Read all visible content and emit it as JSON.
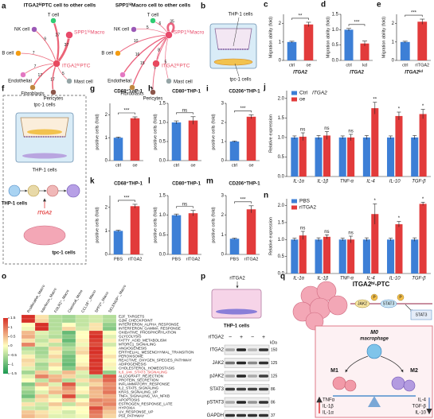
{
  "chart_data": [
    {
      "type": "bar",
      "panel": "c",
      "ylabel": "Migration ability (fold)",
      "xlabel": "ITGA2",
      "categories": [
        "ctrl",
        "oe"
      ],
      "values": [
        1,
        1.95
      ],
      "errors": [
        0.04,
        0.12
      ],
      "colors": [
        "#3d7fd6",
        "#e23b3b"
      ],
      "ylim": [
        0,
        2.5
      ],
      "yticks": [
        0,
        1,
        2
      ],
      "significance": "**"
    },
    {
      "type": "bar",
      "panel": "d",
      "ylabel": "Migration ability (fold)",
      "xlabel": "ITGA2",
      "categories": [
        "ctrl",
        "kd"
      ],
      "values": [
        1,
        0.55
      ],
      "errors": [
        0.04,
        0.08
      ],
      "colors": [
        "#3d7fd6",
        "#e23b3b"
      ],
      "ylim": [
        0,
        1.5
      ],
      "yticks": [
        {
          "value": 0,
          "label": "0.0"
        },
        {
          "value": 0.5,
          "label": "0.5"
        },
        {
          "value": 1,
          "label": "1.0"
        },
        {
          "value": 1.5,
          "label": "1.5"
        }
      ],
      "significance": "***"
    },
    {
      "type": "bar",
      "panel": "e",
      "ylabel": "Migration ability (fold)",
      "xlabel": "ITGA2ᵏᵈ",
      "categories": [
        "ctrl",
        "rITGA2"
      ],
      "values": [
        1,
        2.1
      ],
      "errors": [
        0.04,
        0.14
      ],
      "colors": [
        "#3d7fd6",
        "#e23b3b"
      ],
      "ylim": [
        0,
        2.5
      ],
      "yticks": [
        0,
        1,
        2
      ],
      "significance": "***"
    },
    {
      "type": "bar",
      "panel": "g",
      "title": "CD68⁺THP-1",
      "ylabel": "positive cells (fold)",
      "categories": [
        "ctrl",
        "oe"
      ],
      "values": [
        1,
        1.85
      ],
      "errors": [
        0.03,
        0.06
      ],
      "colors": [
        "#3d7fd6",
        "#e23b3b"
      ],
      "ylim": [
        0,
        2.5
      ],
      "yticks": [
        0,
        1,
        2
      ],
      "significance": "***"
    },
    {
      "type": "bar",
      "panel": "h",
      "title": "CD80⁺THP-1",
      "ylabel": "positive cells (fold)",
      "categories": [
        "ctrl",
        "oe"
      ],
      "values": [
        1,
        1.05
      ],
      "errors": [
        0.04,
        0.1
      ],
      "colors": [
        "#3d7fd6",
        "#e23b3b"
      ],
      "ylim": [
        0,
        1.5
      ],
      "yticks": [
        {
          "value": 0,
          "label": "0.0"
        },
        {
          "value": 0.5,
          "label": "0.5"
        },
        {
          "value": 1,
          "label": "1.0"
        },
        {
          "value": 1.5,
          "label": "1.5"
        }
      ],
      "significance": "ns"
    },
    {
      "type": "bar",
      "panel": "i",
      "title": "CD206⁺THP-1",
      "ylabel": "positive cells (fold)",
      "categories": [
        "ctrl",
        "oe"
      ],
      "values": [
        1,
        2.3
      ],
      "errors": [
        0.03,
        0.1
      ],
      "colors": [
        "#3d7fd6",
        "#e23b3b"
      ],
      "ylim": [
        0,
        3
      ],
      "yticks": [
        0,
        1,
        2,
        3
      ],
      "significance": "***"
    },
    {
      "type": "bar",
      "panel": "k",
      "title": "CD68⁺THP-1",
      "ylabel": "positive cells (fold)",
      "categories": [
        "PBS",
        "rITGA2"
      ],
      "values": [
        1,
        2.05
      ],
      "errors": [
        0.03,
        0.08
      ],
      "colors": [
        "#3d7fd6",
        "#e23b3b"
      ],
      "ylim": [
        0,
        2.5
      ],
      "yticks": [
        0,
        1,
        2
      ],
      "significance": "***"
    },
    {
      "type": "bar",
      "panel": "l",
      "title": "CD80⁺THP-1",
      "ylabel": "positive cells (fold)",
      "categories": [
        "PBS",
        "rITGA2"
      ],
      "values": [
        1,
        1.05
      ],
      "errors": [
        0.03,
        0.07
      ],
      "colors": [
        "#3d7fd6",
        "#e23b3b"
      ],
      "ylim": [
        0,
        1.5
      ],
      "yticks": [
        {
          "value": 0,
          "label": "0.0"
        },
        {
          "value": 0.5,
          "label": "0.5"
        },
        {
          "value": 1,
          "label": "1.0"
        },
        {
          "value": 1.5,
          "label": "1.5"
        }
      ],
      "significance": "ns"
    },
    {
      "type": "bar",
      "panel": "m",
      "title": "CD206⁺THP-1",
      "ylabel": "positive cells (fold)",
      "categories": [
        "PBS",
        "rITGA2"
      ],
      "values": [
        0.8,
        2.3
      ],
      "errors": [
        0.03,
        0.18
      ],
      "colors": [
        "#3d7fd6",
        "#e23b3b"
      ],
      "ylim": [
        0,
        3
      ],
      "yticks": [
        0,
        1,
        2,
        3
      ],
      "significance": "***"
    },
    {
      "type": "grouped_bar",
      "panel": "j",
      "ylabel": "Relative expression",
      "legend_title": "ITGA2",
      "categories": [
        "IL-1α",
        "IL-1β",
        "TNF-α",
        "IL-4",
        "IL-10",
        "TGF-β"
      ],
      "series": [
        {
          "name": "Ctrl",
          "color": "#3d7fd6",
          "values": [
            1,
            1,
            1,
            1,
            1,
            1
          ],
          "errors": [
            0.04,
            0.05,
            0.04,
            0.05,
            0.04,
            0.05
          ]
        },
        {
          "name": "oe",
          "color": "#e23b3b",
          "values": [
            1.02,
            1.05,
            1.0,
            1.75,
            1.55,
            1.6
          ],
          "errors": [
            0.1,
            0.1,
            0.08,
            0.15,
            0.1,
            0.12
          ]
        }
      ],
      "significance": [
        "ns",
        "ns",
        "ns",
        "**",
        "*",
        "*"
      ],
      "ylim": [
        0,
        2.2
      ],
      "yticks": [
        {
          "value": 0,
          "label": "0.0"
        },
        {
          "value": 0.5,
          "label": "0.5"
        },
        {
          "value": 1,
          "label": "1.0"
        },
        {
          "value": 1.5,
          "label": "1.5"
        },
        {
          "value": 2,
          "label": "2.0"
        }
      ]
    },
    {
      "type": "grouped_bar",
      "panel": "n",
      "ylabel": "Relative expression",
      "categories": [
        "IL-1α",
        "IL-1β",
        "TNF-α",
        "IL-4",
        "IL-10",
        "TGF-β"
      ],
      "series": [
        {
          "name": "PBS",
          "color": "#3d7fd6",
          "values": [
            1,
            1,
            1,
            1,
            1,
            1
          ],
          "errors": [
            0.04,
            0.05,
            0.04,
            0.05,
            0.04,
            0.05
          ]
        },
        {
          "name": "rITGA2",
          "color": "#e23b3b",
          "values": [
            1.12,
            1.08,
            1.0,
            1.75,
            1.45,
            2.05
          ],
          "errors": [
            0.12,
            0.06,
            0.1,
            0.3,
            0.08,
            0.05
          ]
        }
      ],
      "significance": [
        "ns",
        "ns",
        "ns",
        "*",
        "*",
        "*"
      ],
      "ylim": [
        0,
        2.2
      ],
      "yticks": [
        {
          "value": 0,
          "label": "0.0"
        },
        {
          "value": 0.5,
          "label": "0.5"
        },
        {
          "value": 1,
          "label": "1.0"
        },
        {
          "value": 1.5,
          "label": "1.5"
        },
        {
          "value": 2,
          "label": "2.0"
        }
      ]
    },
    {
      "type": "heatmap",
      "panel": "o",
      "columns": [
        "Proliferative_Macro",
        "Interferon_Macro",
        "FOLR2⁺_Macro",
        "Classical_Mono",
        "CCL18⁺_Macro",
        "SPP1ʰⁱ_Macro",
        "SELENOP⁺_Macro"
      ],
      "rows": [
        "E2F_TARGETS",
        "G2M_CHECKPOINT",
        "INTERFERON_ALPHA_RESPONSE",
        "INTERFERON_GAMMA_RESPONSE",
        "OXIDATIVE_PHOSPHORYLATION",
        "GLYCOLYSIS",
        "FATTY_ACID_METABOLISM",
        "MTORC1_SIGNALING",
        "ANGIOGENESIS",
        "EPITHELIAL_MESENCHYMAL_TRANSITION",
        "PEROXISOME",
        "REACTIVE_OXYGEN_SPECIES_PATHWAY",
        "ADIPOGENESIS",
        "CHOLESTEROL_HOMEOSTASIS",
        "IL6_JAK_STAT3_SIGNALING",
        "ALLOGRAFT_REJECTION",
        "PROTEIN_SECRETION",
        "INFLAMMATORY_RESPONSE",
        "IL2_STAT5_SIGNALING",
        "KRAS_SIGNALING_UP",
        "TNFA_SIGNALING_VIA_NFKB",
        "APOPTOSIS",
        "ESTROGEN_RESPONSE_LATE",
        "HYPOXIA",
        "UV_RESPONSE_UP",
        "P53_PATHWAY"
      ],
      "values": [
        [
          1.5,
          0.2,
          -0.5,
          -0.6,
          -0.4,
          -0.3,
          -0.5
        ],
        [
          1.5,
          0.3,
          -0.5,
          -0.6,
          -0.4,
          -0.3,
          -0.5
        ],
        [
          0.0,
          1.5,
          -0.5,
          0.0,
          -0.4,
          0.2,
          -0.7
        ],
        [
          -0.1,
          1.5,
          -0.5,
          0.3,
          -0.3,
          0.2,
          -0.8
        ],
        [
          0.5,
          -0.2,
          -0.4,
          -1.0,
          0.0,
          1.4,
          0.0
        ],
        [
          0.6,
          -0.3,
          -0.5,
          -0.8,
          0.0,
          1.5,
          -0.2
        ],
        [
          0.2,
          -0.4,
          0.2,
          -1.0,
          0.1,
          1.4,
          0.1
        ],
        [
          0.9,
          -0.2,
          -0.4,
          -0.7,
          -0.1,
          1.3,
          -0.3
        ],
        [
          -0.5,
          -0.6,
          0.3,
          -0.5,
          0.2,
          1.5,
          0.0
        ],
        [
          -0.3,
          -0.6,
          0.1,
          -0.7,
          0.3,
          1.5,
          0.0
        ],
        [
          0.1,
          -0.5,
          0.3,
          -0.9,
          0.0,
          1.4,
          0.2
        ],
        [
          0.3,
          -0.3,
          -0.2,
          -0.9,
          0.0,
          1.5,
          0.0
        ],
        [
          0.2,
          -0.6,
          0.3,
          -1.0,
          0.1,
          1.4,
          0.1
        ],
        [
          -0.2,
          -0.5,
          0.0,
          -0.8,
          0.4,
          1.5,
          -0.1
        ],
        [
          -0.6,
          0.4,
          -0.3,
          0.5,
          -0.2,
          1.4,
          -0.7
        ],
        [
          -0.2,
          0.9,
          0.5,
          0.3,
          -0.3,
          -0.6,
          1.2
        ],
        [
          0.0,
          -0.4,
          0.6,
          -0.5,
          0.2,
          0.5,
          1.1
        ],
        [
          -0.8,
          0.5,
          -0.2,
          1.2,
          -0.3,
          0.3,
          0.8
        ],
        [
          -0.5,
          0.0,
          0.3,
          0.8,
          0.0,
          0.6,
          0.9
        ],
        [
          -0.7,
          -0.2,
          0.5,
          0.6,
          0.1,
          0.5,
          1.0
        ],
        [
          -0.9,
          0.4,
          -0.2,
          1.3,
          -0.4,
          0.5,
          0.6
        ],
        [
          -0.4,
          0.2,
          0.0,
          0.4,
          0.0,
          0.9,
          0.8
        ],
        [
          0.2,
          -0.3,
          0.4,
          -0.4,
          0.3,
          0.7,
          0.9
        ],
        [
          -0.3,
          -0.4,
          0.1,
          0.0,
          0.0,
          1.3,
          0.6
        ],
        [
          0.4,
          0.2,
          -0.1,
          -0.3,
          0.0,
          1.0,
          0.4
        ],
        [
          0.5,
          0.3,
          -0.2,
          -0.2,
          -0.1,
          0.9,
          0.3
        ]
      ],
      "zlim": [
        -1.5,
        1.5
      ],
      "zticks": [
        1.5,
        1,
        0.5,
        0,
        -0.5,
        -1,
        -1.5
      ],
      "colors": [
        "#1a9850",
        "#ffffbf",
        "#d73027"
      ],
      "highlight_row": 14,
      "highlight_color": "#e23b3b"
    }
  ],
  "diagrams": {
    "a": {
      "panel": "a",
      "networks": [
        {
          "title": "ITGA2ʰⁱPTC cell to other cells",
          "nodes": [
            {
              "label": "NK cell",
              "color": "#9b59b6"
            },
            {
              "label": "T cell",
              "color": "#2ecc71"
            },
            {
              "label": "SPP1ʰⁱMacro",
              "color": "#e84a6a",
              "emphasis": true
            },
            {
              "label": "B cell",
              "color": "#f39c12"
            },
            {
              "label": "Endothelial",
              "color": "#e377c2"
            },
            {
              "label": "ITGA2ʰⁱPTC",
              "color": "#e8495f",
              "emphasis": true
            },
            {
              "label": "Fibroblasts",
              "color": "#c0873f"
            },
            {
              "label": "Pericytes",
              "color": "#8c564b"
            },
            {
              "label": "Mast cell",
              "color": "#95a5a6"
            }
          ],
          "edges": [
            {
              "from": 5,
              "to": 0,
              "label": 9
            },
            {
              "from": 5,
              "to": 1,
              "label": 27
            },
            {
              "from": 5,
              "to": 2,
              "label": 37
            },
            {
              "from": 5,
              "to": 3,
              "label": 7
            },
            {
              "from": 5,
              "to": 4,
              "label": 7
            },
            {
              "from": 5,
              "to": 6,
              "label": 17
            },
            {
              "from": 5,
              "to": 7,
              "label": 17
            },
            {
              "from": 5,
              "to": 8,
              "label": 5
            }
          ]
        },
        {
          "title": "SPP1ʰⁱMacro cell to other cells",
          "nodes": [
            {
              "label": "NK cell",
              "color": "#9b59b6"
            },
            {
              "label": "T cell",
              "color": "#2ecc71"
            },
            {
              "label": "SPP1ʰⁱMacro",
              "color": "#e84a6a",
              "emphasis": true
            },
            {
              "label": "B cell",
              "color": "#f39c12"
            },
            {
              "label": "Endothelial",
              "color": "#e377c2"
            },
            {
              "label": "ITGA2ʰⁱPTC",
              "color": "#e8495f",
              "emphasis": true
            },
            {
              "label": "Fibroblasts",
              "color": "#c0873f"
            },
            {
              "label": "Pericytes",
              "color": "#8c564b"
            },
            {
              "label": "Mast cell",
              "color": "#95a5a6"
            }
          ],
          "edges": [
            {
              "from": 2,
              "to": 0,
              "label": 5
            },
            {
              "from": 2,
              "to": 1,
              "label": 6
            },
            {
              "from": 2,
              "to": 2,
              "label": 35
            },
            {
              "from": 2,
              "to": 3,
              "label": 10
            },
            {
              "from": 2,
              "to": 4,
              "label": 16
            },
            {
              "from": 2,
              "to": 5,
              "label": 8
            },
            {
              "from": 2,
              "to": 6,
              "label": 15
            },
            {
              "from": 2,
              "to": 7,
              "label": 9
            },
            {
              "from": 2,
              "to": 8,
              "label": 5
            }
          ]
        }
      ]
    },
    "b": {
      "panel": "b",
      "upper": "THP-1 cells",
      "lower": "tpc-1 cells"
    },
    "f": {
      "panel": "f",
      "upper": "tpc-1 cells",
      "lower": "THP-1 cells",
      "flow": [
        "THP-1 cells",
        "ITGA2",
        "tpc-1 cells"
      ]
    },
    "p": {
      "panel": "p",
      "reagent": "rITGA2",
      "cells": "THP-1 cells",
      "row_label": "rITGA2",
      "lanes": [
        "−",
        "+",
        "−",
        "+"
      ],
      "proteins": [
        "ITGA2",
        "JAK2",
        "pJAK2",
        "STAT3",
        "pSTAT3",
        "GAPDH"
      ],
      "unit": "kDa",
      "sizes": [
        150,
        125,
        125,
        86,
        86,
        37
      ]
    },
    "q": {
      "panel": "q",
      "tumor": "ITGA2ʰⁱ-PTC",
      "jak": "JAK2",
      "phospho": [
        "P",
        "P"
      ],
      "stat": [
        "STAT3",
        "STAT3"
      ],
      "m0": "M0",
      "m0_sub": "macrophage",
      "m1": "M1",
      "m2": "M2",
      "m1_factors": [
        "TNFα",
        "IL-1β",
        "IL-1α"
      ],
      "m2_factors": [
        "IL-4",
        "TGF-β",
        "IL-10"
      ]
    }
  }
}
